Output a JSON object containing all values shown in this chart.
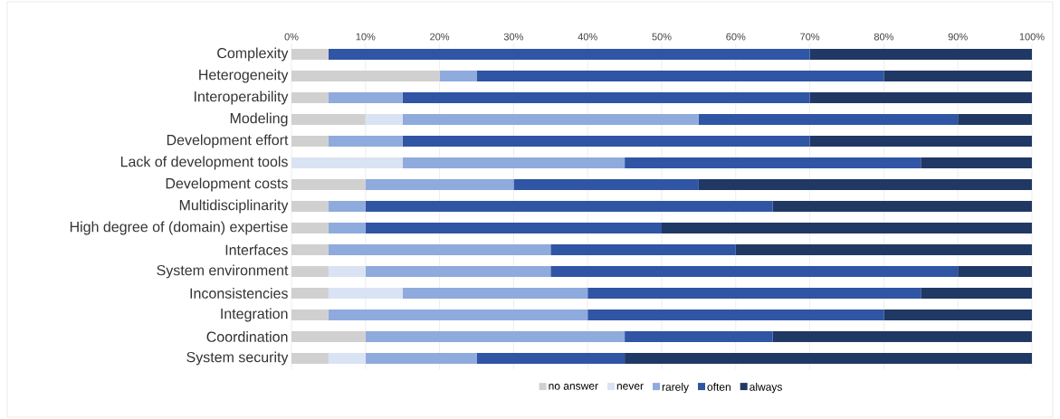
{
  "chart_data": {
    "type": "bar",
    "orientation": "horizontal",
    "stacked": true,
    "categories": [
      "Complexity",
      "Heterogeneity",
      "Interoperability",
      "Modeling",
      "Development effort",
      "Lack of development tools",
      "Development costs",
      "Multidisciplinarity",
      "High degree of (domain) expertise",
      "Interfaces",
      "System environment",
      "Inconsistencies",
      "Integration",
      "Coordination",
      "System security"
    ],
    "series": [
      {
        "name": "no answer",
        "color": "#d0d0d0",
        "values": [
          5,
          20,
          5,
          10,
          5,
          0,
          10,
          5,
          5,
          5,
          5,
          5,
          5,
          10,
          5
        ]
      },
      {
        "name": "never",
        "color": "#dae3f3",
        "values": [
          0,
          0,
          0,
          5,
          0,
          15,
          0,
          0,
          0,
          0,
          5,
          10,
          0,
          0,
          5
        ]
      },
      {
        "name": "rarely",
        "color": "#8faadc",
        "values": [
          0,
          5,
          10,
          40,
          10,
          30,
          20,
          5,
          5,
          30,
          25,
          25,
          35,
          35,
          15
        ]
      },
      {
        "name": "often",
        "color": "#2f55a4",
        "values": [
          65,
          55,
          55,
          35,
          55,
          40,
          25,
          55,
          40,
          25,
          55,
          45,
          40,
          20,
          20
        ]
      },
      {
        "name": "always",
        "color": "#203864",
        "values": [
          30,
          20,
          30,
          10,
          30,
          15,
          45,
          35,
          50,
          40,
          10,
          15,
          20,
          35,
          55
        ]
      }
    ],
    "xlim": [
      0,
      100
    ],
    "xticks": [
      {
        "value": 0,
        "label": "0%"
      },
      {
        "value": 10,
        "label": "10%"
      },
      {
        "value": 20,
        "label": "20%"
      },
      {
        "value": 30,
        "label": "30%"
      },
      {
        "value": 40,
        "label": "40%"
      },
      {
        "value": 50,
        "label": "50%"
      },
      {
        "value": 60,
        "label": "60%"
      },
      {
        "value": 70,
        "label": "70%"
      },
      {
        "value": 80,
        "label": "80%"
      },
      {
        "value": 90,
        "label": "90%"
      },
      {
        "value": 100,
        "label": "100%"
      }
    ],
    "grid": "x",
    "legend": "bottom"
  }
}
